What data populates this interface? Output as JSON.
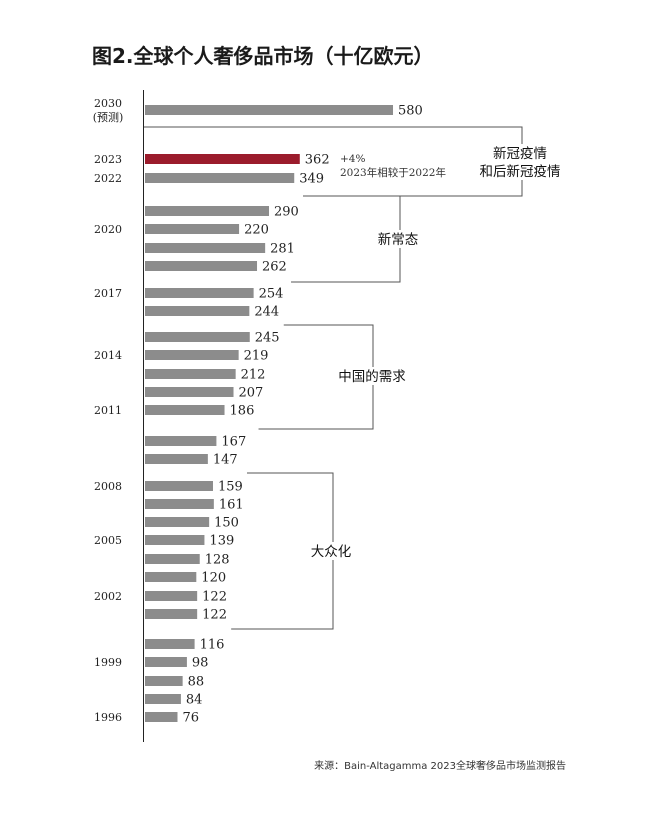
{
  "title": "图2.全球个人奢侈品市场（十亿欧元）",
  "source": "来源：Bain-Altagamma 2023全球奢侈品市场监测报告",
  "colors": {
    "bar": "#8c8c8c",
    "highlight": "#9b1c2c",
    "axis": "#222222",
    "bracket": "#555555"
  },
  "chart_data": {
    "type": "bar",
    "orientation": "horizontal",
    "title": "图2.全球个人奢侈品市场（十亿欧元）",
    "xlabel": "",
    "ylabel": "",
    "grid": false,
    "bars": [
      {
        "value": 580,
        "year_label": [
          "2030",
          "(预测)"
        ],
        "highlight": false
      },
      {
        "value": 362,
        "year_label": [
          "2023"
        ],
        "highlight": true
      },
      {
        "value": 349,
        "year_label": [
          "2022"
        ],
        "highlight": false
      },
      {
        "value": 290,
        "year_label": [],
        "highlight": false
      },
      {
        "value": 220,
        "year_label": [
          "2020"
        ],
        "highlight": false
      },
      {
        "value": 281,
        "year_label": [],
        "highlight": false
      },
      {
        "value": 262,
        "year_label": [],
        "highlight": false
      },
      {
        "value": 254,
        "year_label": [
          "2017"
        ],
        "highlight": false
      },
      {
        "value": 244,
        "year_label": [],
        "highlight": false
      },
      {
        "value": 245,
        "year_label": [],
        "highlight": false
      },
      {
        "value": 219,
        "year_label": [
          "2014"
        ],
        "highlight": false
      },
      {
        "value": 212,
        "year_label": [],
        "highlight": false
      },
      {
        "value": 207,
        "year_label": [],
        "highlight": false
      },
      {
        "value": 186,
        "year_label": [
          "2011"
        ],
        "highlight": false
      },
      {
        "value": 167,
        "year_label": [],
        "highlight": false
      },
      {
        "value": 147,
        "year_label": [],
        "highlight": false
      },
      {
        "value": 159,
        "year_label": [
          "2008"
        ],
        "highlight": false
      },
      {
        "value": 161,
        "year_label": [],
        "highlight": false
      },
      {
        "value": 150,
        "year_label": [],
        "highlight": false
      },
      {
        "value": 139,
        "year_label": [
          "2005"
        ],
        "highlight": false
      },
      {
        "value": 128,
        "year_label": [],
        "highlight": false
      },
      {
        "value": 120,
        "year_label": [],
        "highlight": false
      },
      {
        "value": 122,
        "year_label": [
          "2002"
        ],
        "highlight": false
      },
      {
        "value": 122,
        "year_label": [],
        "highlight": false
      },
      {
        "value": 116,
        "year_label": [],
        "highlight": false
      },
      {
        "value": 98,
        "year_label": [
          "1999"
        ],
        "highlight": false
      },
      {
        "value": 88,
        "year_label": [],
        "highlight": false
      },
      {
        "value": 84,
        "year_label": [],
        "highlight": false
      },
      {
        "value": 76,
        "year_label": [
          "1996"
        ],
        "highlight": false
      }
    ],
    "annotation": {
      "lines": [
        "+4%",
        "2023年相较于2022年"
      ]
    },
    "groups": [
      {
        "label": [
          "新冠疫情",
          "和后新冠疫情"
        ],
        "from": 1,
        "to": 2
      },
      {
        "label": [
          "新常态"
        ],
        "from": 3,
        "to": 6
      },
      {
        "label": [
          "中国的需求"
        ],
        "from": 9,
        "to": 13
      },
      {
        "label": [
          "大众化"
        ],
        "from": 16,
        "to": 23
      }
    ]
  }
}
